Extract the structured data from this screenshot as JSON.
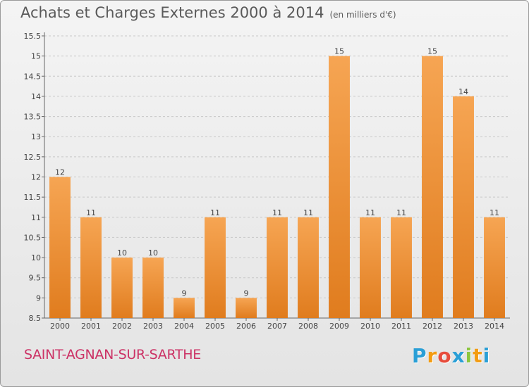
{
  "title": "Achats et Charges Externes 2000 à 2014",
  "subtitle": "(en milliers d'€)",
  "commune": "SAINT-AGNAN-SUR-SARTHE",
  "logo": {
    "letters": [
      "P",
      "r",
      "o",
      "x",
      "i",
      "t",
      "i"
    ],
    "colors": [
      "#2a9fd6",
      "#f39c12",
      "#e74c3c",
      "#2a9fd6",
      "#8cc63f",
      "#f39c12",
      "#2a9fd6"
    ]
  },
  "colors": {
    "bar_light": "#f6a553",
    "bar_dark": "#e07c1e",
    "grid": "#c8c8c8",
    "commune": "#cc3366"
  },
  "chart_data": {
    "type": "bar",
    "title": "Achats et Charges Externes 2000 à 2014",
    "subtitle": "(en milliers d'€)",
    "categories": [
      "2000",
      "2001",
      "2002",
      "2003",
      "2004",
      "2005",
      "2006",
      "2007",
      "2008",
      "2009",
      "2010",
      "2011",
      "2012",
      "2013",
      "2014"
    ],
    "values": [
      12,
      11,
      10,
      10,
      9,
      11,
      9,
      11,
      11,
      15,
      11,
      11,
      15,
      14,
      11
    ],
    "data_labels": [
      "12",
      "11",
      "10",
      "10",
      "9",
      "11",
      "9",
      "11",
      "11",
      "15",
      "11",
      "11",
      "15",
      "14",
      "11"
    ],
    "yticks": [
      "8.5",
      "9",
      "9.5",
      "10",
      "10.5",
      "11",
      "11.5",
      "12",
      "12.5",
      "13",
      "13.5",
      "14",
      "14.5",
      "15",
      "15.5"
    ],
    "ylim": [
      8.5,
      15.5
    ],
    "grid": true,
    "xlabel": "",
    "ylabel": ""
  }
}
